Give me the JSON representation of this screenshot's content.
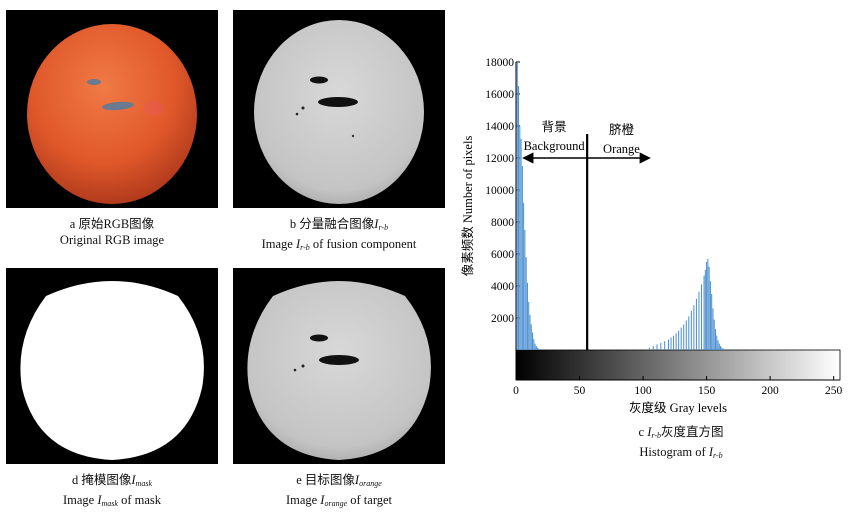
{
  "figure": {
    "panel_a": {
      "caption_zh": "a 原始RGB图像",
      "caption_en": "Original RGB image"
    },
    "panel_b": {
      "caption_zh_prefix": "b 分量融合图像",
      "caption_var": "I",
      "caption_sub": "r-b",
      "caption_en_prefix": "Image ",
      "caption_en_suffix": " of fusion component"
    },
    "panel_d": {
      "caption_zh_prefix": "d 掩模图像",
      "caption_var": "I",
      "caption_sub": "mask",
      "caption_en_prefix": "Image ",
      "caption_en_suffix": " of mask"
    },
    "panel_e": {
      "caption_zh_prefix": "e 目标图像",
      "caption_var": "I",
      "caption_sub": "orange",
      "caption_en_prefix": "Image ",
      "caption_en_suffix": " of target"
    },
    "panel_c": {
      "caption_zh_prefix": "c ",
      "caption_var": "I",
      "caption_sub": "r-b",
      "caption_zh_suffix": "灰度直方图",
      "caption_en_prefix": "Histogram of ",
      "caption_en_var": "I",
      "caption_en_sub": "r-b"
    }
  },
  "chart_data": {
    "type": "bar",
    "title": "",
    "xlabel": "灰度级 Gray levels",
    "ylabel": "像素频数 Number of pixels",
    "xlim": [
      0,
      255
    ],
    "ylim": [
      0,
      18000
    ],
    "xticks": [
      0,
      50,
      100,
      150,
      200,
      250
    ],
    "yticks": [
      2000,
      4000,
      6000,
      8000,
      10000,
      12000,
      14000,
      16000,
      18000
    ],
    "color": "#4a8fd0",
    "threshold": 56,
    "annotations": {
      "background_zh": "背景",
      "background_en": "Background",
      "orange_zh": "脐橙",
      "orange_en": "Orange"
    },
    "series": [
      {
        "x": [
          1,
          2,
          3,
          4,
          5,
          6,
          7,
          8,
          9,
          10,
          11,
          12,
          13,
          14,
          15,
          16,
          17,
          18,
          105,
          108,
          111,
          114,
          117,
          120,
          122,
          124,
          126,
          128,
          130,
          132,
          134,
          136,
          138,
          140,
          142,
          144,
          146,
          148,
          149,
          150,
          151,
          152,
          153,
          154,
          155,
          156,
          157,
          158,
          159,
          160,
          161,
          162,
          163,
          164
        ],
        "values": [
          18000,
          16500,
          14000,
          13200,
          11500,
          9200,
          7500,
          5800,
          4200,
          3000,
          2200,
          1600,
          1100,
          700,
          400,
          250,
          150,
          80,
          150,
          250,
          350,
          450,
          550,
          650,
          780,
          900,
          1050,
          1200,
          1400,
          1600,
          1850,
          2100,
          2450,
          2800,
          3200,
          3650,
          4100,
          4650,
          5000,
          5500,
          5700,
          5200,
          4300,
          3500,
          2600,
          1900,
          1300,
          900,
          600,
          400,
          250,
          150,
          90,
          50
        ]
      }
    ]
  }
}
